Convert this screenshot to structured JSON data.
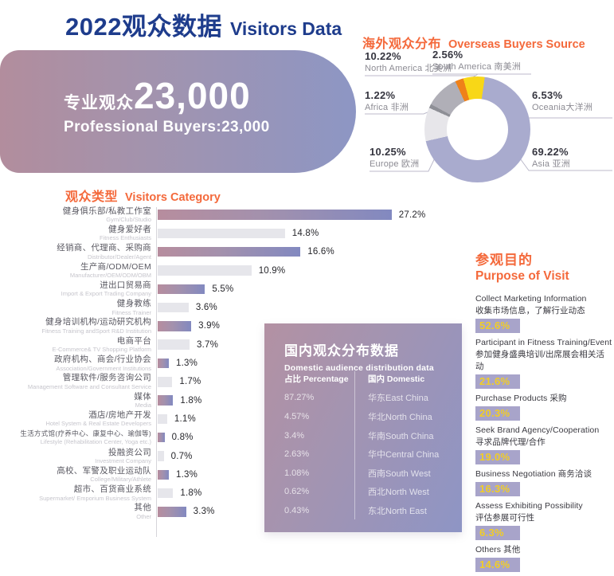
{
  "page": {
    "title_zh": "2022观众数据",
    "title_en": "Visitors Data"
  },
  "banner": {
    "label_zh": "专业观众",
    "count": "23,000",
    "label_en": "Professional  Buyers:23,000"
  },
  "overseas": {
    "title_zh": "海外观众分布",
    "title_en": "Overseas Buyers Source",
    "labels": [
      {
        "pct": "10.22%",
        "name": "North America 北美洲"
      },
      {
        "pct": "2.56%",
        "name": "South America 南美洲"
      },
      {
        "pct": "1.22%",
        "name": "Africa 非洲"
      },
      {
        "pct": "6.53%",
        "name": "Oceania大洋洲"
      },
      {
        "pct": "10.25%",
        "name": "Europe 欧洲"
      },
      {
        "pct": "69.22%",
        "name": "Asia 亚洲"
      }
    ]
  },
  "category": {
    "title_zh": "观众类型",
    "title_en": "Visitors Category"
  },
  "domestic": {
    "title_zh": "国内观众分布数据",
    "title_en": "Domestic audience distribution data",
    "col1": "占比 Percentage",
    "col2": "国内 Domestic"
  },
  "purpose": {
    "title_zh": "参观目的",
    "title_en": "Purpose of Visit",
    "items": [
      {
        "lines": [
          "Collect Marketing Information",
          "收集市场信息，了解行业动态"
        ],
        "pct": "52.6%"
      },
      {
        "lines": [
          "Participant in Fitness Training/Event",
          "参加健身盛典培训/出席展会相关活动"
        ],
        "pct": "21.6%"
      },
      {
        "lines": [
          "Purchase Products 采购"
        ],
        "pct": "20.3%"
      },
      {
        "lines": [
          "Seek Brand Agency/Cooperation",
          "寻求品牌代理/合作"
        ],
        "pct": "19.0%"
      },
      {
        "lines": [
          "Business Negotiation 商务洽谈"
        ],
        "pct": "16.3%"
      },
      {
        "lines": [
          "Assess Exhibiting Possibility",
          "评估参展可行性"
        ],
        "pct": "6.3%"
      },
      {
        "lines": [
          "Others 其他"
        ],
        "pct": "14.6%"
      }
    ]
  },
  "chart_data": [
    {
      "type": "pie",
      "donut": true,
      "title": "海外观众分布 Overseas Buyers Source",
      "start_angle_deg": 8,
      "legend_position": "around",
      "segments": [
        {
          "name": "Asia 亚洲",
          "value": 69.22,
          "color": "#a9abce"
        },
        {
          "name": "Europe 欧洲",
          "value": 10.25,
          "color": "#e7e6ea"
        },
        {
          "name": "Africa 非洲",
          "value": 1.22,
          "color": "#8e8f96"
        },
        {
          "name": "North America 北美洲",
          "value": 10.22,
          "color": "#b0afb7"
        },
        {
          "name": "South America 南美洲",
          "value": 2.56,
          "color": "#ef8119"
        },
        {
          "name": "Oceania 大洋洲",
          "value": 6.53,
          "color": "#f8d717"
        }
      ]
    },
    {
      "type": "bar",
      "orientation": "horizontal",
      "title": "观众类型 Visitors Category",
      "xlim": [
        0,
        30
      ],
      "grid": false,
      "categories": [
        "健身俱乐部/私教工作室",
        "健身爱好者",
        "经销商、代理商、采购商",
        "生产商/ODM/OEM",
        "进出口贸易商",
        "健身教练",
        "健身培训机构/运动研究机构",
        "电商平台",
        "政府机构、商会/行业协会",
        "管理软件/服务咨询公司",
        "媒体",
        "酒店/房地产开发",
        "生活方式馆(疗养中心、康复中心、瑜伽等)",
        "投融资公司",
        "高校、军警及职业运动队",
        "超市、百货商业系统",
        "其他"
      ],
      "categories_en": [
        "Gym/Club/Studio",
        "Fitness Enthusiasts",
        "Distributor/Dealer/Agent",
        "Manufacturer/OEM/ODM/OBM",
        "Import & Export Trading Company",
        "Fitness Trainer",
        "Fitness Training andSport R&D Institution",
        "E-Commerce& TV Shopping Platform",
        "Association/Government Institutions",
        "Management Software and Consultant Service",
        "Media",
        "Hotel System & Real Estate Developers",
        "Lifestyle (Rehabilitation Center, Yoga etc.)",
        "Investment Company",
        "College/Military/Athlete",
        "Supermarket/ Emporium Business System",
        "Other"
      ],
      "values": [
        27.2,
        14.8,
        16.6,
        10.9,
        5.5,
        3.6,
        3.9,
        3.7,
        1.3,
        1.7,
        1.8,
        1.1,
        0.8,
        0.7,
        1.3,
        1.8,
        3.3
      ],
      "value_labels": [
        "27.2%",
        "14.8%",
        "16.6%",
        "10.9%",
        "5.5%",
        "3.6%",
        "3.9%",
        "3.7%",
        "1.3%",
        "1.7%",
        "1.8%",
        "1.1%",
        "0.8%",
        "0.7%",
        "1.3%",
        "1.8%",
        "3.3%"
      ],
      "bar_styles": [
        "gradient",
        "gray"
      ],
      "gradient_colors": [
        "#b78d9e",
        "#8289c0"
      ],
      "gray_color": "#e6e6eb"
    },
    {
      "type": "table",
      "title": "国内观众分布数据 Domestic audience distribution data",
      "columns": [
        "占比 Percentage",
        "国内 Domestic"
      ],
      "rows": [
        [
          "87.27%",
          "华东East China"
        ],
        [
          "4.57%",
          "华北North China"
        ],
        [
          "3.4%",
          "华南South China"
        ],
        [
          "2.63%",
          "华中Central China"
        ],
        [
          "1.08%",
          "西南South West"
        ],
        [
          "0.62%",
          "西北North West"
        ],
        [
          "0.43%",
          "东北North East"
        ]
      ]
    },
    {
      "type": "bar",
      "title": "参观目的 Purpose of Visit",
      "categories": [
        "Collect Marketing Information 收集市场信息，了解行业动态",
        "Participant in Fitness Training/Event 参加健身盛典培训/出席展会相关活动",
        "Purchase Products 采购",
        "Seek Brand Agency/Cooperation 寻求品牌代理/合作",
        "Business Negotiation 商务洽谈",
        "Assess Exhibiting Possibility 评估参展可行性",
        "Others 其他"
      ],
      "values": [
        52.6,
        21.6,
        20.3,
        19.0,
        16.3,
        6.3,
        14.6
      ]
    }
  ],
  "colors": {
    "navy": "#1e3c8c",
    "orange": "#f4693b",
    "chip_bg": "#a8a4ca",
    "chip_text": "#f1cd26",
    "banner_gradient": [
      "#b28d9d",
      "#8d96c4"
    ],
    "panel_gradient": [
      "#b391a3",
      "#8e95c5"
    ]
  }
}
